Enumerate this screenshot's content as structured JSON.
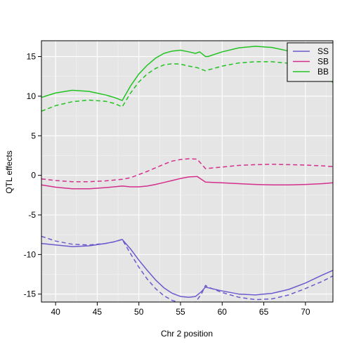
{
  "chart_data": {
    "type": "line",
    "title": "",
    "xlabel": "Chr 2 position",
    "ylabel": "QTL effects",
    "xlim": [
      38.3,
      73.3
    ],
    "ylim": [
      -16,
      17
    ],
    "x_ticks": [
      40,
      45,
      50,
      55,
      60,
      65,
      70
    ],
    "y_ticks": [
      -15,
      -10,
      -5,
      0,
      5,
      10,
      15
    ],
    "grid": true,
    "background": "#e5e5e5",
    "legend_position": "top-right",
    "legend": [
      {
        "label": "SS",
        "color": "#6a5acd"
      },
      {
        "label": "SB",
        "color": "#d42f8c"
      },
      {
        "label": "BB",
        "color": "#22c322"
      }
    ],
    "series": [
      {
        "name": "SS",
        "style": "solid",
        "color": "#6a5acd",
        "x": [
          38.3,
          40,
          42,
          44,
          46,
          47,
          48,
          49,
          50,
          51,
          52,
          53,
          54,
          55,
          56,
          56.8,
          57.5,
          58,
          58.3,
          60,
          62,
          64,
          66,
          68,
          70,
          72,
          73.3
        ],
        "y": [
          -8.6,
          -8.8,
          -9.0,
          -8.9,
          -8.6,
          -8.4,
          -8.1,
          -9.3,
          -10.7,
          -12.0,
          -13.2,
          -14.2,
          -14.9,
          -15.3,
          -15.4,
          -15.3,
          -14.7,
          -14.1,
          -14.2,
          -14.6,
          -15.0,
          -15.1,
          -14.9,
          -14.4,
          -13.6,
          -12.6,
          -12.0
        ]
      },
      {
        "name": "SS",
        "style": "dashed",
        "color": "#6a5acd",
        "x": [
          38.3,
          40,
          42,
          44,
          46,
          47,
          48,
          49,
          50,
          51,
          52,
          53,
          54,
          55,
          56,
          56.8,
          57.5,
          58,
          58.3,
          60,
          62,
          64,
          66,
          68,
          70,
          72,
          73.3
        ],
        "y": [
          -7.7,
          -8.3,
          -8.7,
          -8.8,
          -8.6,
          -8.4,
          -8.1,
          -9.9,
          -11.6,
          -13.1,
          -14.3,
          -15.2,
          -15.8,
          -16.1,
          -16.2,
          -16.0,
          -15.0,
          -13.9,
          -14.1,
          -14.8,
          -15.4,
          -15.7,
          -15.6,
          -15.1,
          -14.3,
          -13.4,
          -12.7
        ]
      },
      {
        "name": "SB",
        "style": "solid",
        "color": "#d42f8c",
        "x": [
          38.3,
          40,
          42,
          44,
          46,
          47,
          48,
          49,
          50,
          51,
          52,
          53,
          54,
          55,
          56,
          57,
          58,
          60,
          62,
          64,
          66,
          68,
          70,
          72,
          73.3
        ],
        "y": [
          -1.2,
          -1.5,
          -1.7,
          -1.7,
          -1.55,
          -1.45,
          -1.35,
          -1.45,
          -1.45,
          -1.35,
          -1.15,
          -0.9,
          -0.65,
          -0.4,
          -0.2,
          -0.15,
          -0.85,
          -0.95,
          -1.05,
          -1.15,
          -1.2,
          -1.2,
          -1.15,
          -1.05,
          -0.95
        ]
      },
      {
        "name": "SB",
        "style": "dashed",
        "color": "#d42f8c",
        "x": [
          38.3,
          40,
          42,
          44,
          46,
          47,
          48,
          49,
          50,
          51,
          52,
          53,
          54,
          55,
          56,
          57,
          58,
          60,
          62,
          64,
          66,
          68,
          70,
          72,
          73.3
        ],
        "y": [
          -0.45,
          -0.65,
          -0.8,
          -0.8,
          -0.7,
          -0.6,
          -0.5,
          -0.3,
          0.1,
          0.5,
          0.95,
          1.4,
          1.8,
          2.0,
          2.1,
          2.05,
          0.85,
          1.05,
          1.25,
          1.35,
          1.4,
          1.35,
          1.3,
          1.2,
          1.1
        ]
      },
      {
        "name": "BB",
        "style": "solid",
        "color": "#22c322",
        "x": [
          38.3,
          40,
          42,
          44,
          46,
          47,
          48,
          49,
          50,
          51,
          52,
          53,
          54,
          55,
          56,
          56.8,
          57.3,
          58,
          58.3,
          60,
          62,
          64,
          66,
          68,
          70,
          72,
          73.3
        ],
        "y": [
          9.85,
          10.4,
          10.75,
          10.6,
          10.15,
          9.85,
          9.45,
          11.3,
          12.8,
          13.9,
          14.8,
          15.4,
          15.7,
          15.8,
          15.6,
          15.4,
          15.6,
          15.0,
          15.0,
          15.6,
          16.1,
          16.3,
          16.15,
          15.7,
          14.9,
          13.4,
          11.7
        ]
      },
      {
        "name": "BB",
        "style": "dashed",
        "color": "#22c322",
        "x": [
          38.3,
          40,
          42,
          44,
          46,
          47,
          48,
          49,
          50,
          51,
          52,
          53,
          54,
          55,
          56,
          57,
          58,
          58.3,
          60,
          62,
          64,
          66,
          68,
          70,
          72,
          73.3
        ],
        "y": [
          8.1,
          8.8,
          9.3,
          9.5,
          9.35,
          9.1,
          8.65,
          10.4,
          11.8,
          12.8,
          13.5,
          13.95,
          14.1,
          14.05,
          13.8,
          13.6,
          13.2,
          13.3,
          13.8,
          14.2,
          14.35,
          14.35,
          14.15,
          13.75,
          13.05,
          12.3
        ]
      }
    ]
  }
}
